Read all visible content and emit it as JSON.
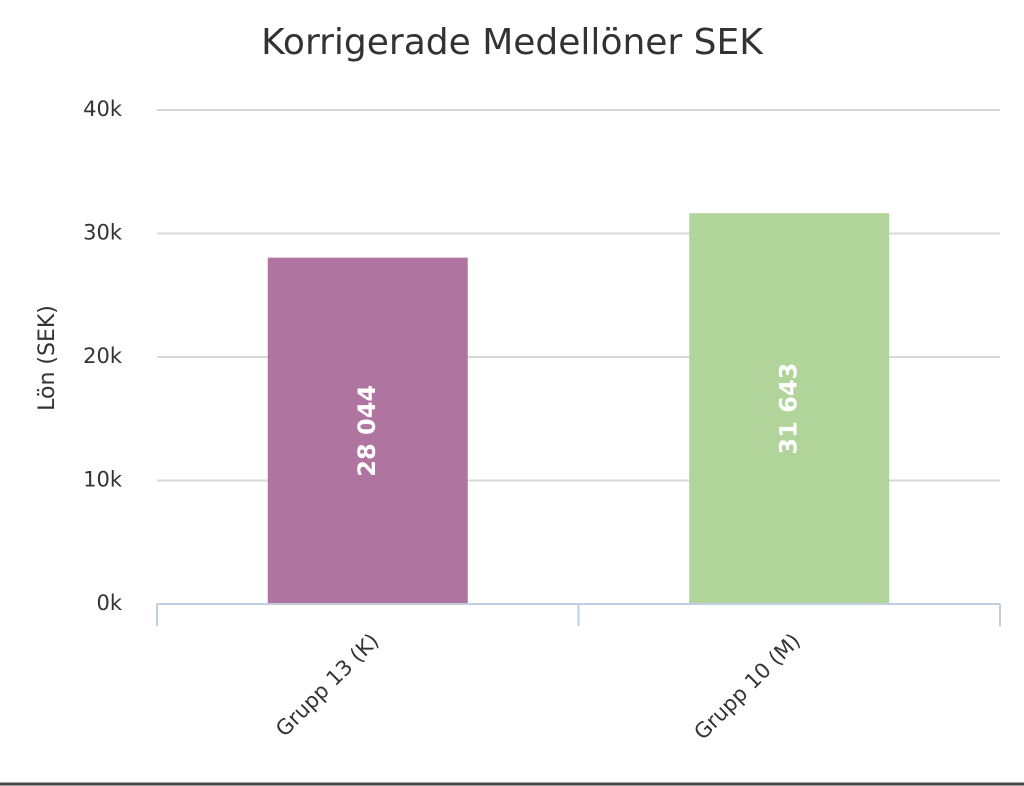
{
  "chart_data": {
    "type": "bar",
    "title": "Korrigerade Medellöner SEK",
    "y_label": "Lön (SEK)",
    "categories": [
      "Grupp 13 (K)",
      "Grupp 10 (M)"
    ],
    "values": [
      28044,
      31643
    ],
    "value_labels": [
      "28 044",
      "31 643"
    ],
    "colors": [
      "#b074a0",
      "#b0d49a"
    ],
    "ylim": [
      0,
      40000
    ],
    "yticks": [
      {
        "value": 0,
        "label": "0k"
      },
      {
        "value": 10000,
        "label": "10k"
      },
      {
        "value": 20000,
        "label": "20k"
      },
      {
        "value": 30000,
        "label": "30k"
      },
      {
        "value": 40000,
        "label": "40k"
      }
    ],
    "grid": true
  }
}
